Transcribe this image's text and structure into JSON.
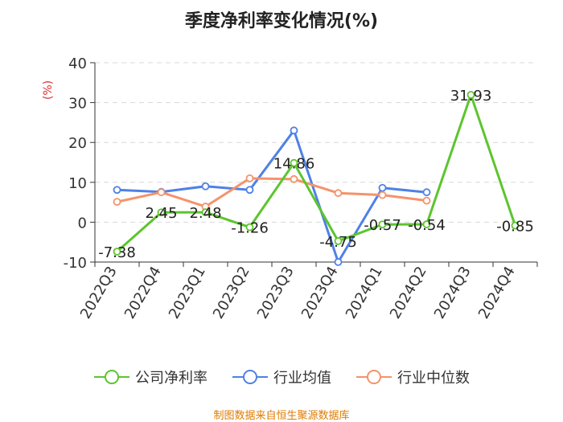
{
  "title": "季度净利率变化情况(%)",
  "source": "制图数据来自恒生聚源数据库",
  "chart_data": {
    "type": "line",
    "categories": [
      "2022Q3",
      "2022Q4",
      "2023Q1",
      "2023Q2",
      "2023Q3",
      "2023Q4",
      "2024Q1",
      "2024Q2",
      "2024Q3",
      "2024Q4"
    ],
    "ylabel": "(%)",
    "ylim": [
      -10,
      40
    ],
    "yticks": [
      -10,
      0,
      10,
      20,
      30,
      40
    ],
    "grid": true,
    "legend_position": "bottom",
    "series": [
      {
        "name": "公司净利率",
        "color": "#5cc52e",
        "values": [
          -7.38,
          2.45,
          2.48,
          -1.26,
          14.86,
          -4.75,
          -0.57,
          -0.54,
          31.93,
          -0.85
        ],
        "labels": [
          "-7.38",
          "2.45",
          "2.48",
          "-1.26",
          "14.86",
          "-4.75",
          "-0.57",
          "-0.54",
          "31.93",
          "-0.85"
        ]
      },
      {
        "name": "行业均值",
        "color": "#4f81e6",
        "values": [
          8.1,
          7.6,
          9.0,
          8.1,
          23.0,
          -10.0,
          8.6,
          7.5,
          null,
          null
        ]
      },
      {
        "name": "行业中位数",
        "color": "#f4936b",
        "values": [
          5.1,
          7.5,
          3.9,
          11.0,
          10.8,
          7.3,
          6.8,
          5.4,
          null,
          null
        ]
      }
    ]
  }
}
